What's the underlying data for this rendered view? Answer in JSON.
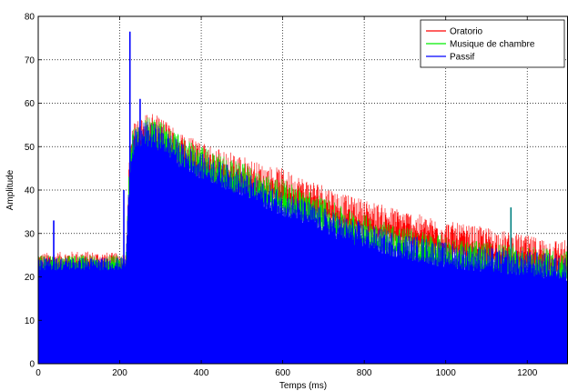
{
  "chart_data": {
    "type": "line",
    "xlabel": "Temps (ms)",
    "ylabel": "Amplitude",
    "xlim": [
      0,
      1300
    ],
    "ylim": [
      0,
      80
    ],
    "x_ticks": [
      "0",
      "200",
      "400",
      "600",
      "800",
      "1000",
      "1200"
    ],
    "y_ticks": [
      "0",
      "10",
      "20",
      "30",
      "40",
      "50",
      "60",
      "70",
      "80"
    ],
    "grid": true,
    "legend_position": "top-right",
    "series": [
      {
        "name": "Oratorio",
        "color": "#ff0000",
        "x": [
          0,
          100,
          200,
          215,
          222,
          230,
          260,
          300,
          350,
          400,
          450,
          500,
          550,
          600,
          650,
          700,
          750,
          800,
          850,
          900,
          950,
          1000,
          1050,
          1100,
          1150,
          1200,
          1250,
          1300
        ],
        "values": [
          24,
          24.5,
          24,
          24,
          42,
          52,
          55,
          54,
          50.5,
          48,
          46.5,
          45,
          43,
          42,
          40,
          38.5,
          36,
          35,
          33.5,
          32.5,
          31,
          30,
          29,
          28.5,
          27.5,
          26.5,
          26,
          25.5
        ]
      },
      {
        "name": "Musique de chambre",
        "color": "#00ee00",
        "x": [
          0,
          100,
          200,
          215,
          222,
          230,
          260,
          300,
          350,
          400,
          450,
          500,
          550,
          600,
          650,
          700,
          750,
          800,
          850,
          900,
          950,
          1000,
          1050,
          1100,
          1150,
          1200,
          1250,
          1300
        ],
        "values": [
          23.5,
          23.5,
          23.5,
          23.5,
          41,
          51,
          54,
          53,
          49.5,
          47,
          45,
          43.5,
          41,
          39.5,
          37.5,
          35.5,
          33,
          31.5,
          30,
          28.5,
          27.5,
          26.5,
          25.5,
          25,
          24.5,
          24,
          23.5,
          23
        ]
      },
      {
        "name": "Passif",
        "color": "#0000ff",
        "x": [
          0,
          100,
          200,
          215,
          222,
          230,
          260,
          300,
          350,
          400,
          450,
          500,
          550,
          600,
          650,
          700,
          750,
          800,
          850,
          900,
          950,
          1000,
          1050,
          1100,
          1150,
          1200,
          1250,
          1300
        ],
        "values": [
          23,
          23,
          23,
          23,
          40,
          50,
          53,
          52,
          48,
          45.5,
          43.5,
          41.5,
          39,
          37,
          35,
          33,
          31,
          29.5,
          28,
          27,
          26,
          25,
          24.5,
          24,
          23.5,
          23,
          22.5,
          22
        ]
      }
    ],
    "annotations": [
      {
        "series": "Passif",
        "x": 38,
        "y": 33,
        "kind": "spike"
      },
      {
        "series": "Passif",
        "x": 210,
        "y": 40,
        "kind": "spike"
      },
      {
        "series": "Passif",
        "x": 225,
        "y": 76.5,
        "kind": "spike"
      },
      {
        "series": "Passif",
        "x": 250,
        "y": 61,
        "kind": "spike"
      },
      {
        "series": "Passif",
        "x": 1160,
        "y": 36,
        "kind": "spike"
      }
    ]
  }
}
